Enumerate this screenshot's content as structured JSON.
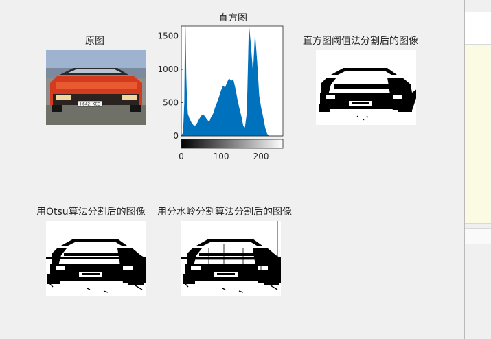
{
  "figure": {
    "titles": {
      "original": "原图",
      "histogram": "直方图",
      "threshold": "直方图阈值法分割后的图像",
      "otsu": "用Otsu算法分割后的图像",
      "watershed": "用分水岭分割算法分割后的图像"
    },
    "plate_text": "H642 KCE"
  },
  "chart_data": {
    "type": "area",
    "title": "直方图",
    "xlabel": "",
    "ylabel": "",
    "xlim": [
      0,
      255
    ],
    "ylim": [
      0,
      1650
    ],
    "x_ticks": [
      "0",
      "100",
      "200"
    ],
    "y_ticks": [
      "0",
      "500",
      "1000",
      "1500"
    ],
    "grid": false,
    "fill_color": "#0072bd",
    "x": [
      0,
      5,
      8,
      10,
      12,
      14,
      16,
      20,
      25,
      30,
      35,
      40,
      45,
      50,
      55,
      60,
      65,
      70,
      75,
      80,
      85,
      90,
      95,
      100,
      105,
      110,
      115,
      120,
      125,
      130,
      135,
      140,
      145,
      150,
      155,
      160,
      165,
      170,
      175,
      180,
      185,
      190,
      195,
      200,
      205,
      210,
      215,
      220,
      225,
      230,
      235,
      240,
      245,
      250,
      255
    ],
    "values": [
      0,
      50,
      500,
      1680,
      900,
      500,
      330,
      260,
      200,
      160,
      150,
      190,
      250,
      300,
      320,
      280,
      240,
      200,
      280,
      330,
      420,
      500,
      580,
      680,
      750,
      720,
      800,
      860,
      820,
      850,
      720,
      560,
      420,
      300,
      150,
      120,
      350,
      1640,
      1300,
      900,
      1500,
      1100,
      600,
      420,
      280,
      120,
      30,
      0,
      0,
      0,
      0,
      0,
      0,
      0,
      0
    ]
  }
}
